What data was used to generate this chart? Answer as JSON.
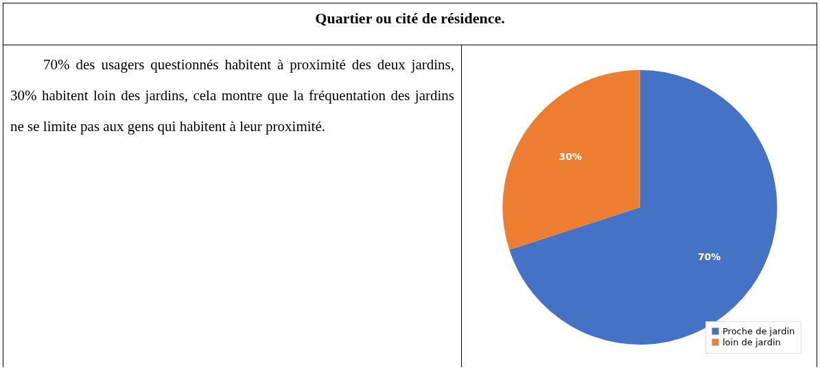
{
  "chart_data": {
    "type": "pie",
    "title": "Quartier ou cité de résidence.",
    "annotations": [
      "70% des usagers questionnés habitent à proximité des deux jardins, 30% habitent loin des jardins, cela montre que la fréquentation des jardins ne se limite pas aux gens qui habitent à leur proximité."
    ],
    "categories": [
      "Proche de jardin",
      "loin de jardin"
    ],
    "values": [
      70,
      30
    ],
    "colors": [
      "#4472c4",
      "#ed7d31"
    ],
    "value_labels": [
      "70%",
      "30%"
    ],
    "legend": "bottom right"
  }
}
